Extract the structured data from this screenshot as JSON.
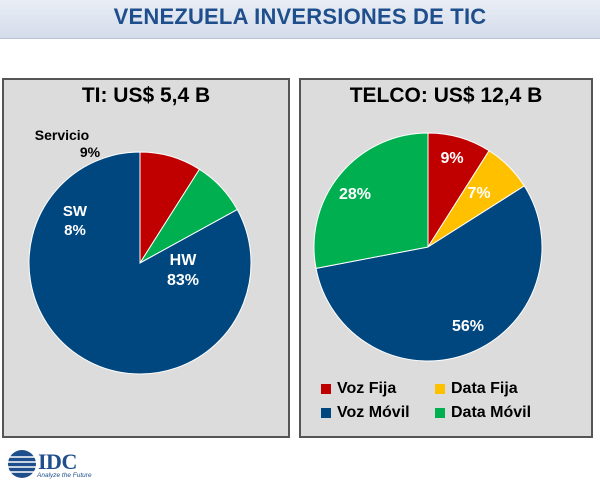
{
  "title": "VENEZUELA INVERSIONES DE TIC",
  "logo": {
    "name": "IDC",
    "tagline": "Analyze the Future"
  },
  "colors": {
    "hw": "#00467f",
    "sw": "#00b050",
    "servicio": "#c00000",
    "voz_fija": "#c00000",
    "data_fija": "#ffc000",
    "voz_movil": "#00467f",
    "data_movil": "#00b050"
  },
  "chart_data": [
    {
      "type": "pie",
      "title": "TI: US$ 5,4 B",
      "slices": [
        {
          "name": "Servicio",
          "value": 9,
          "label": "9%",
          "color": "#c00000"
        },
        {
          "name": "SW",
          "value": 8,
          "label": "8%",
          "color": "#00b050"
        },
        {
          "name": "HW",
          "value": 83,
          "label": "83%",
          "color": "#00467f"
        }
      ]
    },
    {
      "type": "pie",
      "title": "TELCO: US$ 12,4 B",
      "legend": [
        "Voz Fija",
        "Data Fija",
        "Voz Móvil",
        "Data Móvil"
      ],
      "legend_position": "bottom",
      "slices": [
        {
          "name": "Voz Fija",
          "value": 9,
          "label": "9%",
          "color": "#c00000"
        },
        {
          "name": "Data Fija",
          "value": 7,
          "label": "7%",
          "color": "#ffc000"
        },
        {
          "name": "Voz Móvil",
          "value": 56,
          "label": "56%",
          "color": "#00467f"
        },
        {
          "name": "Data Móvil",
          "value": 28,
          "label": "28%",
          "color": "#00b050"
        }
      ]
    }
  ]
}
